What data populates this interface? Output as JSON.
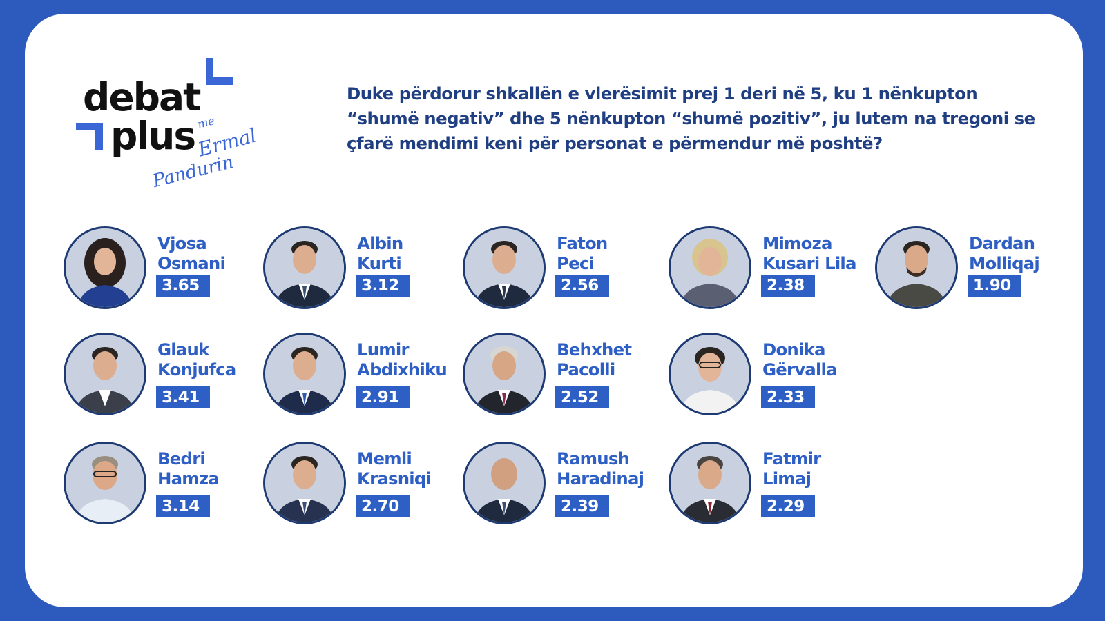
{
  "logo": {
    "word1": "debat",
    "word2": "plus",
    "me": "me",
    "first_name": "Ermal",
    "last_name": "Pandurin"
  },
  "question": "Duke përdorur shkallën e vlerësimit prej 1 deri në 5, ku 1 nënkupton “shumë negativ” dhe 5 nënkupton “shumë pozitiv”, ju lutem na tregoni se çfarë mendimi keni për personat e përmendur më poshtë?",
  "people": [
    {
      "first": "Vjosa",
      "last": "Osmani",
      "score": "3.65"
    },
    {
      "first": "Albin",
      "last": "Kurti",
      "score": "3.12"
    },
    {
      "first": "Faton",
      "last": "Peci",
      "score": "2.56"
    },
    {
      "first": "Mimoza",
      "last": "Kusari Lila",
      "score": "2.38"
    },
    {
      "first": "Dardan",
      "last": "Molliqaj",
      "score": "1.90"
    },
    {
      "first": "Glauk",
      "last": "Konjufca",
      "score": "3.41"
    },
    {
      "first": "Lumir",
      "last": "Abdixhiku",
      "score": "2.91"
    },
    {
      "first": "Behxhet",
      "last": "Pacolli",
      "score": "2.52"
    },
    {
      "first": "Donika",
      "last": "Gërvalla",
      "score": "2.33"
    },
    {
      "first": "Bedri",
      "last": "Hamza",
      "score": "3.14"
    },
    {
      "first": "Memli",
      "last": "Krasniqi",
      "score": "2.70"
    },
    {
      "first": "Ramush",
      "last": "Haradinaj",
      "score": "2.39"
    },
    {
      "first": "Fatmir",
      "last": "Limaj",
      "score": "2.29"
    }
  ],
  "colors": {
    "frame": "#2d5bbd",
    "card": "#ffffff",
    "accent": "#2e5fc5",
    "question_text": "#203f82",
    "photo_ring": "#1e3a73"
  }
}
